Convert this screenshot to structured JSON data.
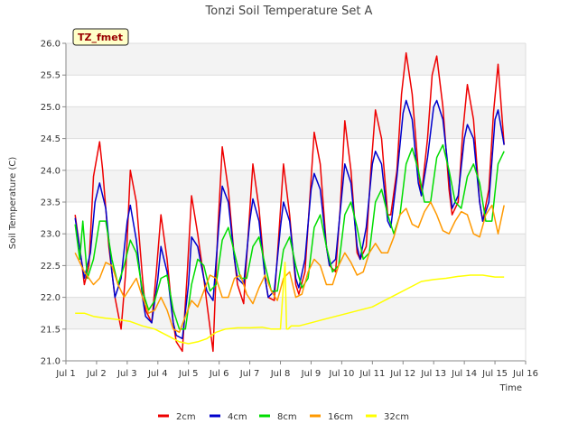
{
  "chart_data": {
    "type": "line",
    "title": "Tonzi Soil Temperature Set A",
    "xlabel": "Time",
    "ylabel": "Soil Temperature (C)",
    "xlim": [
      1,
      16
    ],
    "ylim": [
      21.0,
      26.0
    ],
    "x_ticks": [
      {
        "v": 1,
        "label": "Jul 1"
      },
      {
        "v": 2,
        "label": "Jul 2"
      },
      {
        "v": 3,
        "label": "Jul 3"
      },
      {
        "v": 4,
        "label": "Jul 4"
      },
      {
        "v": 5,
        "label": "Jul 5"
      },
      {
        "v": 6,
        "label": "Jul 6"
      },
      {
        "v": 7,
        "label": "Jul 7"
      },
      {
        "v": 8,
        "label": "Jul 8"
      },
      {
        "v": 9,
        "label": "Jul 9"
      },
      {
        "v": 10,
        "label": "Jul 10"
      },
      {
        "v": 11,
        "label": "Jul 11"
      },
      {
        "v": 12,
        "label": "Jul 12"
      },
      {
        "v": 13,
        "label": "Jul 13"
      },
      {
        "v": 14,
        "label": "Jul 14"
      },
      {
        "v": 15,
        "label": "Jul 15"
      },
      {
        "v": 16,
        "label": "Jul 16"
      }
    ],
    "y_ticks": [
      21.0,
      21.5,
      22.0,
      22.5,
      23.0,
      23.5,
      24.0,
      24.5,
      25.0,
      25.5,
      26.0
    ],
    "y_tick_labels": [
      "21.0",
      "21.5",
      "22.0",
      "22.5",
      "23.0",
      "23.5",
      "24.0",
      "24.5",
      "25.0",
      "25.5",
      "26.0"
    ],
    "grid": "horizontal bands",
    "legend_position": "bottom",
    "annotation": "TZ_fmet",
    "series": [
      {
        "name": "2cm",
        "color": "#ee0000",
        "x": [
          1.3,
          1.5,
          1.6,
          1.75,
          1.9,
          2.1,
          2.2,
          2.4,
          2.6,
          2.8,
          2.95,
          3.1,
          3.3,
          3.5,
          3.6,
          3.8,
          3.95,
          4.1,
          4.3,
          4.5,
          4.6,
          4.8,
          4.95,
          5.1,
          5.3,
          5.5,
          5.6,
          5.8,
          5.95,
          6.1,
          6.3,
          6.5,
          6.6,
          6.8,
          6.95,
          7.1,
          7.3,
          7.5,
          7.6,
          7.8,
          7.95,
          8.1,
          8.3,
          8.5,
          8.6,
          8.8,
          8.95,
          9.1,
          9.3,
          9.5,
          9.6,
          9.8,
          9.95,
          10.1,
          10.3,
          10.5,
          10.6,
          10.8,
          10.95,
          11.1,
          11.3,
          11.5,
          11.6,
          11.8,
          11.95,
          12.1,
          12.3,
          12.5,
          12.6,
          12.8,
          12.95,
          13.1,
          13.3,
          13.5,
          13.6,
          13.8,
          13.95,
          14.1,
          14.3,
          14.5,
          14.6,
          14.8,
          14.95,
          15.1,
          15.3
        ],
        "y": [
          23.3,
          22.6,
          22.2,
          22.5,
          23.9,
          24.45,
          24.0,
          22.8,
          22.0,
          21.5,
          22.4,
          24.0,
          23.5,
          22.3,
          21.8,
          21.6,
          22.4,
          23.3,
          22.6,
          21.6,
          21.3,
          21.15,
          22.3,
          23.6,
          23.0,
          22.3,
          21.9,
          21.15,
          23.0,
          24.37,
          23.7,
          22.6,
          22.2,
          21.9,
          23.0,
          24.1,
          23.4,
          22.3,
          22.0,
          21.95,
          23.0,
          24.1,
          23.3,
          22.2,
          22.05,
          22.4,
          23.5,
          24.6,
          24.1,
          22.8,
          22.5,
          22.4,
          23.4,
          24.78,
          24.0,
          22.7,
          22.6,
          22.8,
          24.0,
          24.95,
          24.5,
          23.3,
          23.3,
          24.0,
          25.2,
          25.85,
          25.2,
          24.0,
          23.6,
          24.5,
          25.5,
          25.8,
          25.0,
          23.7,
          23.3,
          23.5,
          24.6,
          25.35,
          24.8,
          23.5,
          23.2,
          23.7,
          24.9,
          25.67,
          24.4
        ]
      },
      {
        "name": "4cm",
        "color": "#0000cc",
        "x": [
          1.3,
          1.5,
          1.6,
          1.8,
          1.95,
          2.1,
          2.3,
          2.5,
          2.6,
          2.8,
          3.0,
          3.1,
          3.3,
          3.5,
          3.6,
          3.8,
          4.0,
          4.1,
          4.3,
          4.5,
          4.6,
          4.8,
          5.0,
          5.1,
          5.3,
          5.5,
          5.6,
          5.8,
          6.0,
          6.1,
          6.3,
          6.5,
          6.6,
          6.8,
          7.0,
          7.1,
          7.3,
          7.5,
          7.6,
          7.8,
          8.0,
          8.1,
          8.3,
          8.5,
          8.6,
          8.8,
          9.0,
          9.1,
          9.3,
          9.5,
          9.6,
          9.8,
          10.0,
          10.1,
          10.3,
          10.5,
          10.6,
          10.8,
          11.0,
          11.1,
          11.3,
          11.5,
          11.6,
          11.8,
          12.0,
          12.1,
          12.3,
          12.5,
          12.6,
          12.8,
          13.0,
          13.1,
          13.3,
          13.5,
          13.6,
          13.8,
          14.0,
          14.1,
          14.3,
          14.5,
          14.6,
          14.8,
          15.0,
          15.1,
          15.3
        ],
        "y": [
          23.25,
          22.6,
          22.3,
          22.7,
          23.5,
          23.8,
          23.4,
          22.4,
          22.0,
          22.3,
          23.2,
          23.45,
          22.9,
          22.0,
          21.7,
          21.6,
          22.3,
          22.8,
          22.4,
          21.6,
          21.4,
          21.35,
          22.2,
          22.95,
          22.8,
          22.3,
          22.1,
          21.95,
          23.2,
          23.75,
          23.5,
          22.6,
          22.3,
          22.2,
          23.2,
          23.55,
          23.2,
          22.3,
          22.0,
          22.1,
          23.1,
          23.5,
          23.2,
          22.3,
          22.15,
          22.6,
          23.7,
          23.95,
          23.7,
          22.8,
          22.5,
          22.6,
          23.6,
          24.1,
          23.8,
          22.8,
          22.6,
          23.1,
          24.1,
          24.3,
          24.1,
          23.2,
          23.1,
          23.9,
          24.9,
          25.1,
          24.8,
          23.8,
          23.6,
          24.2,
          25.0,
          25.1,
          24.8,
          23.9,
          23.4,
          23.6,
          24.5,
          24.72,
          24.5,
          23.5,
          23.2,
          23.5,
          24.8,
          24.95,
          24.4
        ]
      },
      {
        "name": "8cm",
        "color": "#00dd00",
        "x": [
          1.3,
          1.45,
          1.55,
          1.7,
          1.9,
          2.1,
          2.3,
          2.5,
          2.7,
          2.9,
          3.1,
          3.3,
          3.5,
          3.7,
          3.9,
          4.1,
          4.3,
          4.5,
          4.7,
          4.9,
          5.1,
          5.3,
          5.5,
          5.7,
          5.9,
          6.1,
          6.3,
          6.5,
          6.7,
          6.9,
          7.1,
          7.3,
          7.5,
          7.7,
          7.9,
          8.1,
          8.3,
          8.5,
          8.7,
          8.9,
          9.1,
          9.3,
          9.5,
          9.7,
          9.9,
          10.1,
          10.3,
          10.5,
          10.7,
          10.9,
          11.1,
          11.3,
          11.5,
          11.7,
          11.9,
          12.1,
          12.3,
          12.5,
          12.7,
          12.9,
          13.1,
          13.3,
          13.5,
          13.7,
          13.9,
          14.1,
          14.3,
          14.5,
          14.7,
          14.9,
          15.1,
          15.3
        ],
        "y": [
          23.15,
          22.6,
          23.2,
          22.3,
          22.6,
          23.2,
          23.2,
          22.6,
          22.2,
          22.5,
          22.9,
          22.7,
          22.1,
          21.8,
          21.95,
          22.3,
          22.35,
          21.8,
          21.5,
          21.5,
          22.2,
          22.6,
          22.5,
          22.1,
          22.2,
          22.9,
          23.1,
          22.7,
          22.3,
          22.3,
          22.8,
          22.95,
          22.5,
          22.1,
          22.1,
          22.75,
          22.95,
          22.5,
          22.15,
          22.3,
          23.1,
          23.3,
          22.8,
          22.4,
          22.5,
          23.3,
          23.5,
          23.1,
          22.6,
          22.7,
          23.5,
          23.7,
          23.3,
          23.0,
          23.3,
          24.1,
          24.35,
          24.0,
          23.5,
          23.5,
          24.2,
          24.4,
          24.0,
          23.5,
          23.4,
          23.9,
          24.1,
          23.8,
          23.2,
          23.2,
          24.1,
          24.3
        ]
      },
      {
        "name": "16cm",
        "color": "#ff9900",
        "x": [
          1.3,
          1.6,
          1.9,
          2.1,
          2.3,
          2.5,
          2.7,
          2.9,
          3.1,
          3.3,
          3.5,
          3.7,
          3.9,
          4.1,
          4.3,
          4.5,
          4.7,
          4.9,
          5.1,
          5.3,
          5.5,
          5.7,
          5.9,
          6.1,
          6.3,
          6.5,
          6.7,
          6.9,
          7.1,
          7.3,
          7.5,
          7.7,
          7.9,
          8.1,
          8.3,
          8.5,
          8.7,
          8.9,
          9.1,
          9.3,
          9.5,
          9.7,
          9.9,
          10.1,
          10.3,
          10.5,
          10.7,
          10.9,
          11.1,
          11.3,
          11.5,
          11.7,
          11.9,
          12.1,
          12.3,
          12.5,
          12.7,
          12.9,
          13.1,
          13.3,
          13.5,
          13.7,
          13.9,
          14.1,
          14.3,
          14.5,
          14.7,
          14.9,
          15.1,
          15.3
        ],
        "y": [
          22.7,
          22.4,
          22.2,
          22.3,
          22.55,
          22.5,
          22.2,
          22.0,
          22.15,
          22.3,
          22.0,
          21.75,
          21.8,
          22.0,
          21.8,
          21.5,
          21.45,
          21.7,
          21.95,
          21.85,
          22.1,
          22.35,
          22.3,
          22.0,
          22.0,
          22.3,
          22.35,
          22.05,
          21.9,
          22.15,
          22.35,
          22.1,
          21.95,
          22.3,
          22.4,
          22.0,
          22.05,
          22.4,
          22.6,
          22.5,
          22.2,
          22.2,
          22.5,
          22.7,
          22.55,
          22.35,
          22.4,
          22.7,
          22.85,
          22.7,
          22.7,
          22.95,
          23.3,
          23.4,
          23.15,
          23.1,
          23.35,
          23.5,
          23.3,
          23.05,
          23.0,
          23.2,
          23.35,
          23.3,
          23.0,
          22.95,
          23.3,
          23.45,
          23.0,
          23.45
        ]
      },
      {
        "name": "32cm",
        "color": "#ffff00",
        "x": [
          1.3,
          1.6,
          1.9,
          2.3,
          2.7,
          3.1,
          3.5,
          3.9,
          4.3,
          4.7,
          5.0,
          5.3,
          5.6,
          5.9,
          6.2,
          6.6,
          7.0,
          7.4,
          7.7,
          8.0,
          8.15,
          8.2,
          8.25,
          8.35,
          8.6,
          9.0,
          9.4,
          9.8,
          10.2,
          10.6,
          11.0,
          11.4,
          11.8,
          12.2,
          12.6,
          13.0,
          13.4,
          13.8,
          14.2,
          14.6,
          15.0,
          15.3
        ],
        "y": [
          21.75,
          21.75,
          21.7,
          21.67,
          21.65,
          21.62,
          21.55,
          21.5,
          21.4,
          21.3,
          21.27,
          21.3,
          21.35,
          21.45,
          21.5,
          21.52,
          21.52,
          21.53,
          21.5,
          21.5,
          22.55,
          21.5,
          21.5,
          21.55,
          21.55,
          21.6,
          21.65,
          21.7,
          21.75,
          21.8,
          21.85,
          21.95,
          22.05,
          22.15,
          22.25,
          22.28,
          22.3,
          22.33,
          22.35,
          22.35,
          22.32,
          22.32
        ]
      }
    ]
  }
}
